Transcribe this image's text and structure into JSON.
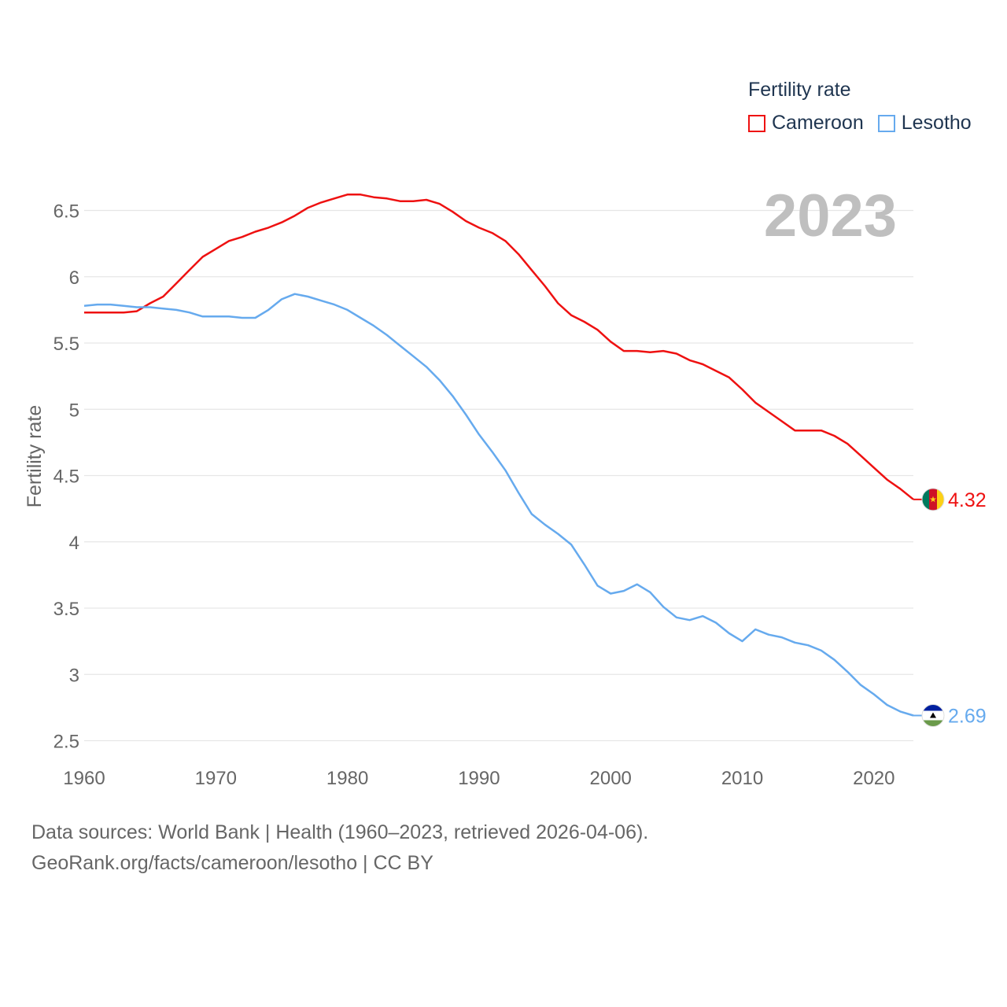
{
  "legend": {
    "title": "Fertility rate",
    "items": [
      {
        "label": "Cameroon",
        "color": "#ee1111"
      },
      {
        "label": "Lesotho",
        "color": "#66aaee"
      }
    ]
  },
  "year_label": "2023",
  "footer": {
    "line1": "Data sources: World Bank | Health (1960–2023, retrieved 2026-04-06).",
    "line2": "GeoRank.org/facts/cameroon/lesotho | CC BY"
  },
  "chart_data": {
    "type": "line",
    "title": "Fertility rate",
    "xlabel": "",
    "ylabel": "Fertility rate",
    "xlim": [
      1960,
      2023
    ],
    "ylim": [
      2.5,
      6.5
    ],
    "x_ticks": [
      1960,
      1970,
      1980,
      1990,
      2000,
      2010,
      2020
    ],
    "y_ticks": [
      2.5,
      3,
      3.5,
      4,
      4.5,
      5,
      5.5,
      6,
      6.5
    ],
    "grid": true,
    "legend_position": "top-right",
    "x": [
      1960,
      1961,
      1962,
      1963,
      1964,
      1965,
      1966,
      1967,
      1968,
      1969,
      1970,
      1971,
      1972,
      1973,
      1974,
      1975,
      1976,
      1977,
      1978,
      1979,
      1980,
      1981,
      1982,
      1983,
      1984,
      1985,
      1986,
      1987,
      1988,
      1989,
      1990,
      1991,
      1992,
      1993,
      1994,
      1995,
      1996,
      1997,
      1998,
      1999,
      2000,
      2001,
      2002,
      2003,
      2004,
      2005,
      2006,
      2007,
      2008,
      2009,
      2010,
      2011,
      2012,
      2013,
      2014,
      2015,
      2016,
      2017,
      2018,
      2019,
      2020,
      2021,
      2022,
      2023
    ],
    "series": [
      {
        "name": "Cameroon",
        "color": "#ee1111",
        "end_label": "4.32",
        "flag": "cameroon-flag",
        "values": [
          5.73,
          5.73,
          5.73,
          5.73,
          5.74,
          5.8,
          5.85,
          5.95,
          6.05,
          6.15,
          6.21,
          6.27,
          6.3,
          6.34,
          6.37,
          6.41,
          6.46,
          6.52,
          6.56,
          6.59,
          6.62,
          6.62,
          6.6,
          6.59,
          6.57,
          6.57,
          6.58,
          6.55,
          6.49,
          6.42,
          6.37,
          6.33,
          6.27,
          6.17,
          6.05,
          5.93,
          5.8,
          5.71,
          5.66,
          5.6,
          5.51,
          5.44,
          5.44,
          5.43,
          5.44,
          5.42,
          5.37,
          5.34,
          5.29,
          5.24,
          5.15,
          5.05,
          4.98,
          4.91,
          4.84,
          4.84,
          4.84,
          4.8,
          4.74,
          4.65,
          4.56,
          4.47,
          4.4,
          4.32
        ]
      },
      {
        "name": "Lesotho",
        "color": "#66aaee",
        "end_label": "2.69",
        "flag": "lesotho-flag",
        "values": [
          5.78,
          5.79,
          5.79,
          5.78,
          5.77,
          5.77,
          5.76,
          5.75,
          5.73,
          5.7,
          5.7,
          5.7,
          5.69,
          5.69,
          5.75,
          5.83,
          5.87,
          5.85,
          5.82,
          5.79,
          5.75,
          5.69,
          5.63,
          5.56,
          5.48,
          5.4,
          5.32,
          5.22,
          5.1,
          4.96,
          4.81,
          4.68,
          4.54,
          4.37,
          4.21,
          4.13,
          4.06,
          3.98,
          3.83,
          3.67,
          3.61,
          3.63,
          3.68,
          3.62,
          3.51,
          3.43,
          3.41,
          3.44,
          3.39,
          3.31,
          3.25,
          3.34,
          3.3,
          3.28,
          3.24,
          3.22,
          3.18,
          3.11,
          3.02,
          2.92,
          2.85,
          2.77,
          2.72,
          2.69
        ]
      }
    ]
  }
}
